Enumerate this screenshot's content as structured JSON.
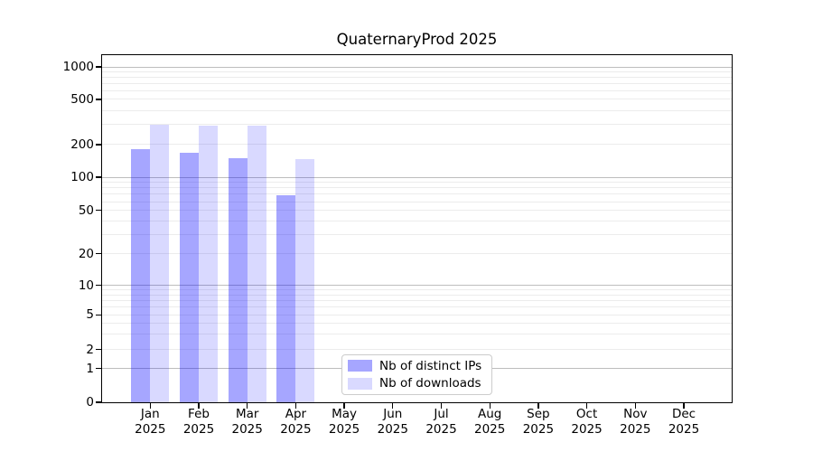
{
  "title": "QuaternaryProd 2025",
  "colors": {
    "bar_ips": "rgba(0,0,255,0.35)",
    "bar_downloads": "rgba(0,0,255,0.15)",
    "grid_major": "#bdbdbd",
    "grid_minor": "#ececec",
    "axis": "#000000",
    "legend_border": "#cccccc",
    "text": "#000000"
  },
  "chart_data": {
    "type": "bar",
    "title": "QuaternaryProd 2025",
    "categories": [
      "Jan 2025",
      "Feb 2025",
      "Mar 2025",
      "Apr 2025",
      "May 2025",
      "Jun 2025",
      "Jul 2025",
      "Aug 2025",
      "Sep 2025",
      "Oct 2025",
      "Nov 2025",
      "Dec 2025"
    ],
    "x_ticks": [
      [
        "Jan",
        "2025"
      ],
      [
        "Feb",
        "2025"
      ],
      [
        "Mar",
        "2025"
      ],
      [
        "Apr",
        "2025"
      ],
      [
        "May",
        "2025"
      ],
      [
        "Jun",
        "2025"
      ],
      [
        "Jul",
        "2025"
      ],
      [
        "Aug",
        "2025"
      ],
      [
        "Sep",
        "2025"
      ],
      [
        "Oct",
        "2025"
      ],
      [
        "Nov",
        "2025"
      ],
      [
        "Dec",
        "2025"
      ]
    ],
    "series": [
      {
        "name": "Nb of distinct IPs",
        "color_key": "bar_ips",
        "values": [
          182,
          169,
          150,
          69,
          0,
          0,
          0,
          0,
          0,
          0,
          0,
          0
        ]
      },
      {
        "name": "Nb of downloads",
        "color_key": "bar_downloads",
        "values": [
          298,
          293,
          292,
          147,
          0,
          0,
          0,
          0,
          0,
          0,
          0,
          0
        ]
      }
    ],
    "xlabel": "",
    "ylabel": "",
    "yscale": "log (symlog-compressed below 10)",
    "ylim": [
      0,
      1280
    ],
    "yticks": [
      1000,
      500,
      200,
      100,
      50,
      20,
      10,
      5,
      2,
      1,
      0
    ],
    "ytick_anchors": [
      [
        0,
        1.0
      ],
      [
        1,
        0.9029
      ],
      [
        2,
        0.8482
      ],
      [
        5,
        0.7482
      ],
      [
        10,
        0.6633
      ],
      [
        20,
        0.5721
      ],
      [
        50,
        0.4471
      ],
      [
        100,
        0.3516
      ],
      [
        200,
        0.2578
      ],
      [
        500,
        0.1276
      ],
      [
        1000,
        0.0339
      ]
    ],
    "grid_major_values": [
      1,
      10,
      100,
      1000
    ],
    "grid_minor_values": [
      2,
      3,
      4,
      5,
      6,
      7,
      8,
      9,
      20,
      30,
      40,
      50,
      60,
      70,
      80,
      90,
      200,
      300,
      400,
      500,
      600,
      700,
      800,
      900
    ],
    "grid": "on (major + minor)",
    "legend_position": "inside, lower center"
  },
  "legend": {
    "items": [
      {
        "label": "Nb of distinct IPs"
      },
      {
        "label": "Nb of downloads"
      }
    ]
  }
}
